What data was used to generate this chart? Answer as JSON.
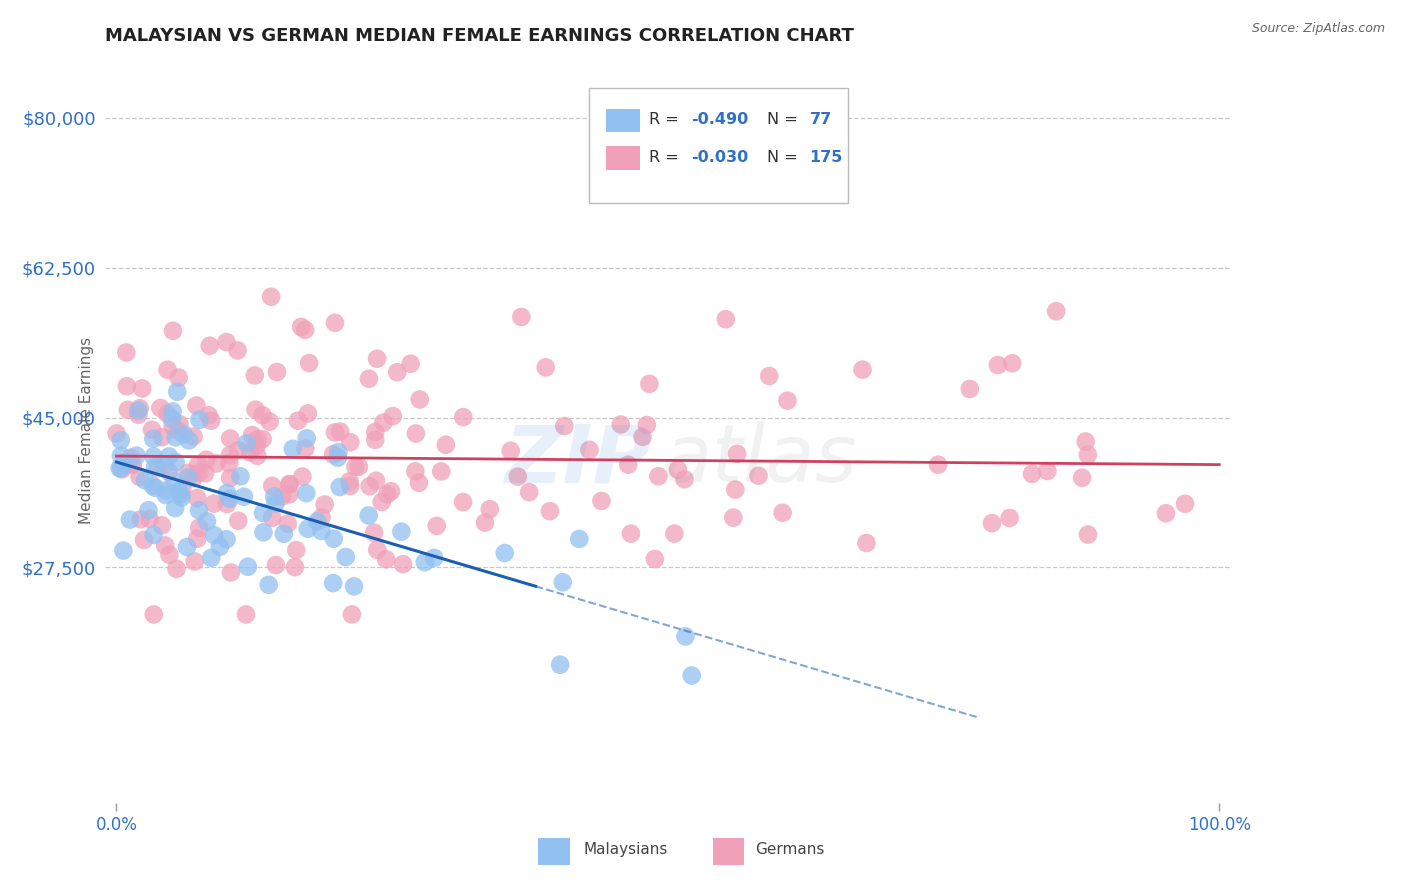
{
  "title": "MALAYSIAN VS GERMAN MEDIAN FEMALE EARNINGS CORRELATION CHART",
  "source": "Source: ZipAtlas.com",
  "ylabel": "Median Female Earnings",
  "xlim": [
    -0.01,
    1.01
  ],
  "ylim": [
    0,
    87000
  ],
  "yticks": [
    27500,
    45000,
    62500,
    80000
  ],
  "ytick_labels": [
    "$27,500",
    "$45,000",
    "$62,500",
    "$80,000"
  ],
  "xtick_labels": [
    "0.0%",
    "100.0%"
  ],
  "bg_color": "#ffffff",
  "grid_color": "#c8c8c8",
  "malaysian_color": "#92c0f0",
  "german_color": "#f0a0b8",
  "malaysian_line_color": "#1a5fb0",
  "german_line_color": "#d04060",
  "r_malaysian": -0.49,
  "n_malaysian": 77,
  "r_german": -0.03,
  "n_german": 175,
  "tick_color": "#3070c8",
  "ylabel_color": "#666666",
  "title_color": "#222222",
  "title_fontsize": 13,
  "source_color": "#666666"
}
